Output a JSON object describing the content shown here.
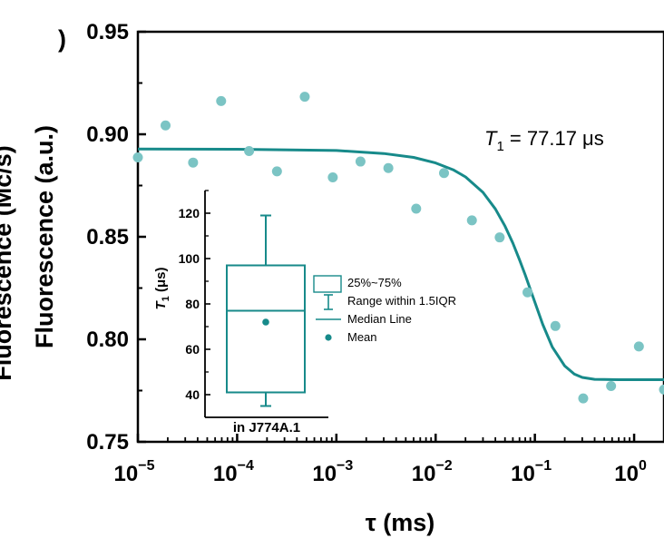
{
  "chart_data": [
    {
      "type": "scatter",
      "xlabel": "τ (ms)",
      "ylabel": "Fluorescence (a.u.)",
      "ylabel_cropped": "Fluorescence (Mc/s)",
      "xscale": "log",
      "xlim": [
        1e-05,
        2.0
      ],
      "ylim": [
        0.75,
        0.95
      ],
      "x_tick_labels": [
        "10",
        "10",
        "10",
        "10",
        "10",
        "10"
      ],
      "x_tick_exponents": [
        "−5",
        "−4",
        "−3",
        "−2",
        "−1",
        "0"
      ],
      "x_tick_values": [
        1e-05,
        0.0001,
        0.001,
        0.01,
        0.1,
        1
      ],
      "y_tick_labels": [
        "0.75",
        "0.80",
        "0.85",
        "0.90",
        "0.95"
      ],
      "y_tick_values": [
        0.75,
        0.8,
        0.85,
        0.9,
        0.95
      ],
      "annotation": {
        "var": "T",
        "sub": "1",
        "text": " = 77.17 μs"
      },
      "series": [
        {
          "kind": "points",
          "color": "#7bc4c4",
          "x": [
            1e-05,
            1.9e-05,
            3.6e-05,
            6.9e-05,
            0.000132,
            0.000252,
            0.00048,
            0.00092,
            0.00175,
            0.00334,
            0.00637,
            0.01215,
            0.0232,
            0.0442,
            0.0843,
            0.161,
            0.307,
            0.586,
            1.117,
            2.0
          ],
          "y": [
            0.8887,
            0.9043,
            0.8862,
            0.9162,
            0.8918,
            0.8819,
            0.9183,
            0.879,
            0.8867,
            0.8835,
            0.8637,
            0.8811,
            0.858,
            0.8497,
            0.8229,
            0.8065,
            0.7712,
            0.7772,
            0.7965,
            0.7755
          ]
        },
        {
          "kind": "fit-line",
          "color": "#178a8a",
          "x": [
            1e-05,
            0.0001,
            0.001,
            0.003,
            0.006,
            0.01,
            0.015,
            0.02,
            0.03,
            0.04,
            0.05,
            0.06,
            0.07,
            0.08,
            0.09,
            0.1,
            0.12,
            0.15,
            0.2,
            0.25,
            0.3,
            0.4,
            0.5,
            0.7,
            1.0,
            2.0
          ],
          "y": [
            0.8928,
            0.8927,
            0.8921,
            0.8906,
            0.8887,
            0.886,
            0.8827,
            0.8792,
            0.8717,
            0.8636,
            0.8552,
            0.8469,
            0.8388,
            0.8314,
            0.8244,
            0.818,
            0.8073,
            0.7962,
            0.787,
            0.783,
            0.7814,
            0.7805,
            0.7804,
            0.7803,
            0.7803,
            0.7803
          ]
        }
      ]
    },
    {
      "type": "box",
      "ylabel_var": "T",
      "ylabel_sub": "1",
      "ylabel_unit": " (μs)",
      "ylim": [
        30,
        130
      ],
      "y_tick_values": [
        40,
        60,
        80,
        100,
        120
      ],
      "y_tick_labels": [
        "40",
        "60",
        "80",
        "100",
        "120"
      ],
      "category": "in J774A.1",
      "color": "#178a8a",
      "whisker_low": 35,
      "q1": 41,
      "median": 77,
      "mean": 72,
      "q3": 97,
      "whisker_high": 119,
      "legend": [
        "25%~75%",
        "Range within 1.5IQR",
        "Median Line",
        "Mean"
      ]
    }
  ]
}
